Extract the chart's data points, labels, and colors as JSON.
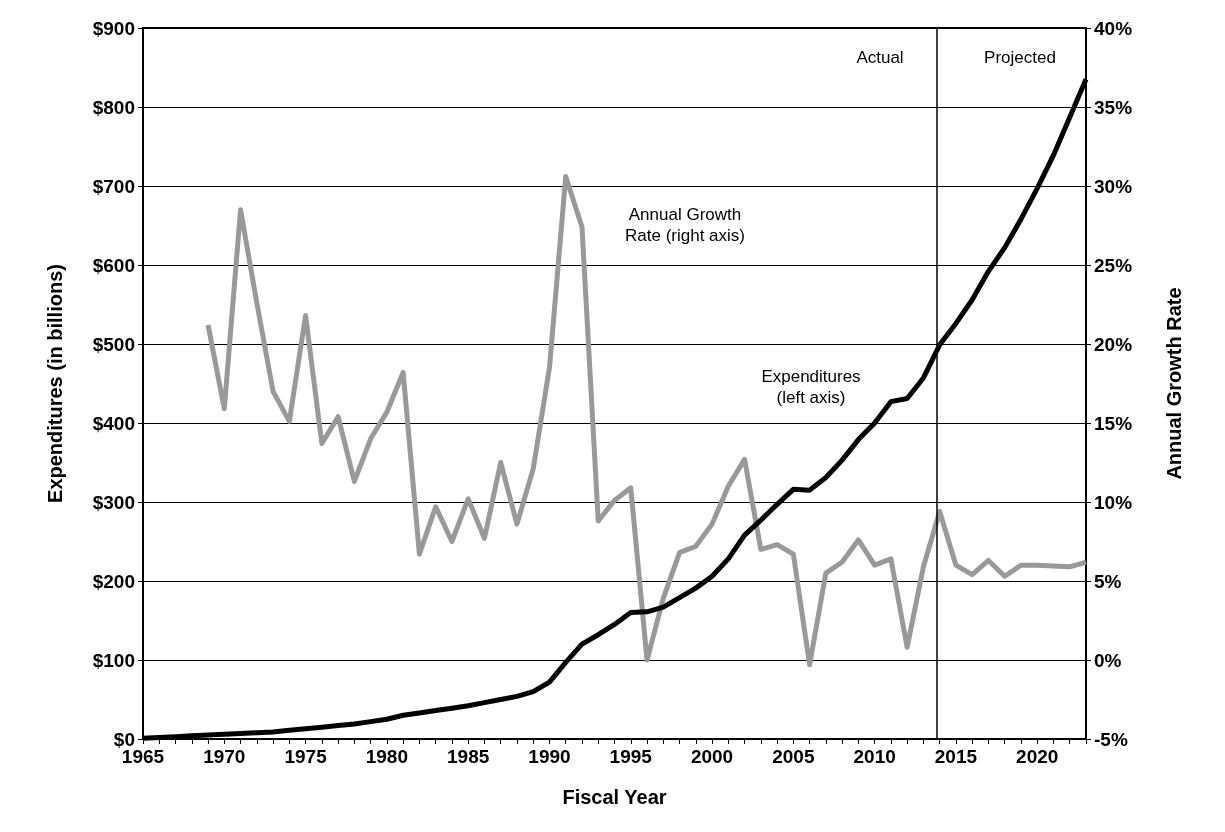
{
  "chart_data": {
    "type": "line",
    "xlabel": "Fiscal Year",
    "ylabel": "Expenditures (in billions)",
    "y2label": "Annual Growth Rate",
    "x": [
      1965,
      1966,
      1967,
      1968,
      1969,
      1970,
      1971,
      1972,
      1973,
      1974,
      1975,
      1976,
      1977,
      1978,
      1979,
      1980,
      1981,
      1982,
      1983,
      1984,
      1985,
      1986,
      1987,
      1988,
      1989,
      1990,
      1991,
      1992,
      1993,
      1994,
      1995,
      1996,
      1997,
      1998,
      1999,
      2000,
      2001,
      2002,
      2003,
      2004,
      2005,
      2006,
      2007,
      2008,
      2009,
      2010,
      2011,
      2012,
      2013,
      2014,
      2015,
      2016,
      2017,
      2018,
      2019,
      2020,
      2021,
      2022,
      2023
    ],
    "series": [
      {
        "color": "#000000",
        "values": [
          1,
          2,
          3,
          4,
          5,
          6,
          7,
          8,
          9,
          11,
          13,
          15,
          17,
          19,
          22,
          25,
          30,
          33,
          36,
          39,
          42,
          46,
          50,
          54,
          60,
          72,
          97,
          120,
          132,
          145,
          160,
          161,
          167,
          179,
          191,
          206,
          228,
          258,
          277,
          297,
          316,
          315,
          331,
          353,
          379,
          400,
          427,
          431,
          457,
          499,
          526,
          556,
          592,
          622,
          658,
          697,
          739,
          787,
          835
        ]
      },
      {
        "color": "#999999",
        "axis": "y2",
        "values": [
          null,
          null,
          null,
          null,
          21.2,
          15.9,
          28.5,
          22.6,
          17.0,
          15.1,
          21.8,
          13.7,
          15.4,
          11.3,
          14.0,
          15.7,
          18.2,
          6.7,
          9.7,
          7.5,
          10.2,
          7.7,
          12.5,
          8.6,
          12.1,
          18.5,
          30.6,
          27.4,
          8.8,
          10.1,
          10.9,
          0.0,
          3.9,
          6.8,
          7.2,
          8.6,
          11.0,
          12.7,
          7.0,
          7.3,
          6.7,
          -0.3,
          5.5,
          6.2,
          7.6,
          6.0,
          6.4,
          0.8,
          5.9,
          9.4,
          6.0,
          5.4,
          6.3,
          5.3,
          6.0,
          6.0,
          5.95,
          5.9,
          6.2
        ]
      }
    ],
    "xlim": [
      1965,
      2023
    ],
    "xticks": [
      1965,
      1970,
      1975,
      1980,
      1985,
      1990,
      1995,
      2000,
      2005,
      2010,
      2015,
      2020
    ],
    "ylim": [
      0,
      900
    ],
    "yticks": [
      {
        "value": 0,
        "label": "$0"
      },
      {
        "value": 100,
        "label": "$100"
      },
      {
        "value": 200,
        "label": "$200"
      },
      {
        "value": 300,
        "label": "$300"
      },
      {
        "value": 400,
        "label": "$400"
      },
      {
        "value": 500,
        "label": "$500"
      },
      {
        "value": 600,
        "label": "$600"
      },
      {
        "value": 700,
        "label": "$700"
      },
      {
        "value": 800,
        "label": "$800"
      },
      {
        "value": 900,
        "label": "$900"
      }
    ],
    "y2lim": [
      -5,
      40
    ],
    "y2ticks": [
      {
        "value": -5,
        "label": "-5%"
      },
      {
        "value": 0,
        "label": "0%"
      },
      {
        "value": 5,
        "label": "5%"
      },
      {
        "value": 10,
        "label": "10%"
      },
      {
        "value": 15,
        "label": "15%"
      },
      {
        "value": 20,
        "label": "20%"
      },
      {
        "value": 25,
        "label": "25%"
      },
      {
        "value": 30,
        "label": "30%"
      },
      {
        "value": 35,
        "label": "35%"
      },
      {
        "value": 40,
        "label": "40%"
      }
    ],
    "ref_lines": [
      {
        "axis": "x",
        "value": 2013.8,
        "color": "#000000"
      }
    ],
    "annotations": [
      "Actual",
      "Projected",
      "Annual Growth\nRate (right axis)",
      "Expenditures\n(left axis)"
    ],
    "grid": "y",
    "marker": "none",
    "line_style": "solid"
  }
}
